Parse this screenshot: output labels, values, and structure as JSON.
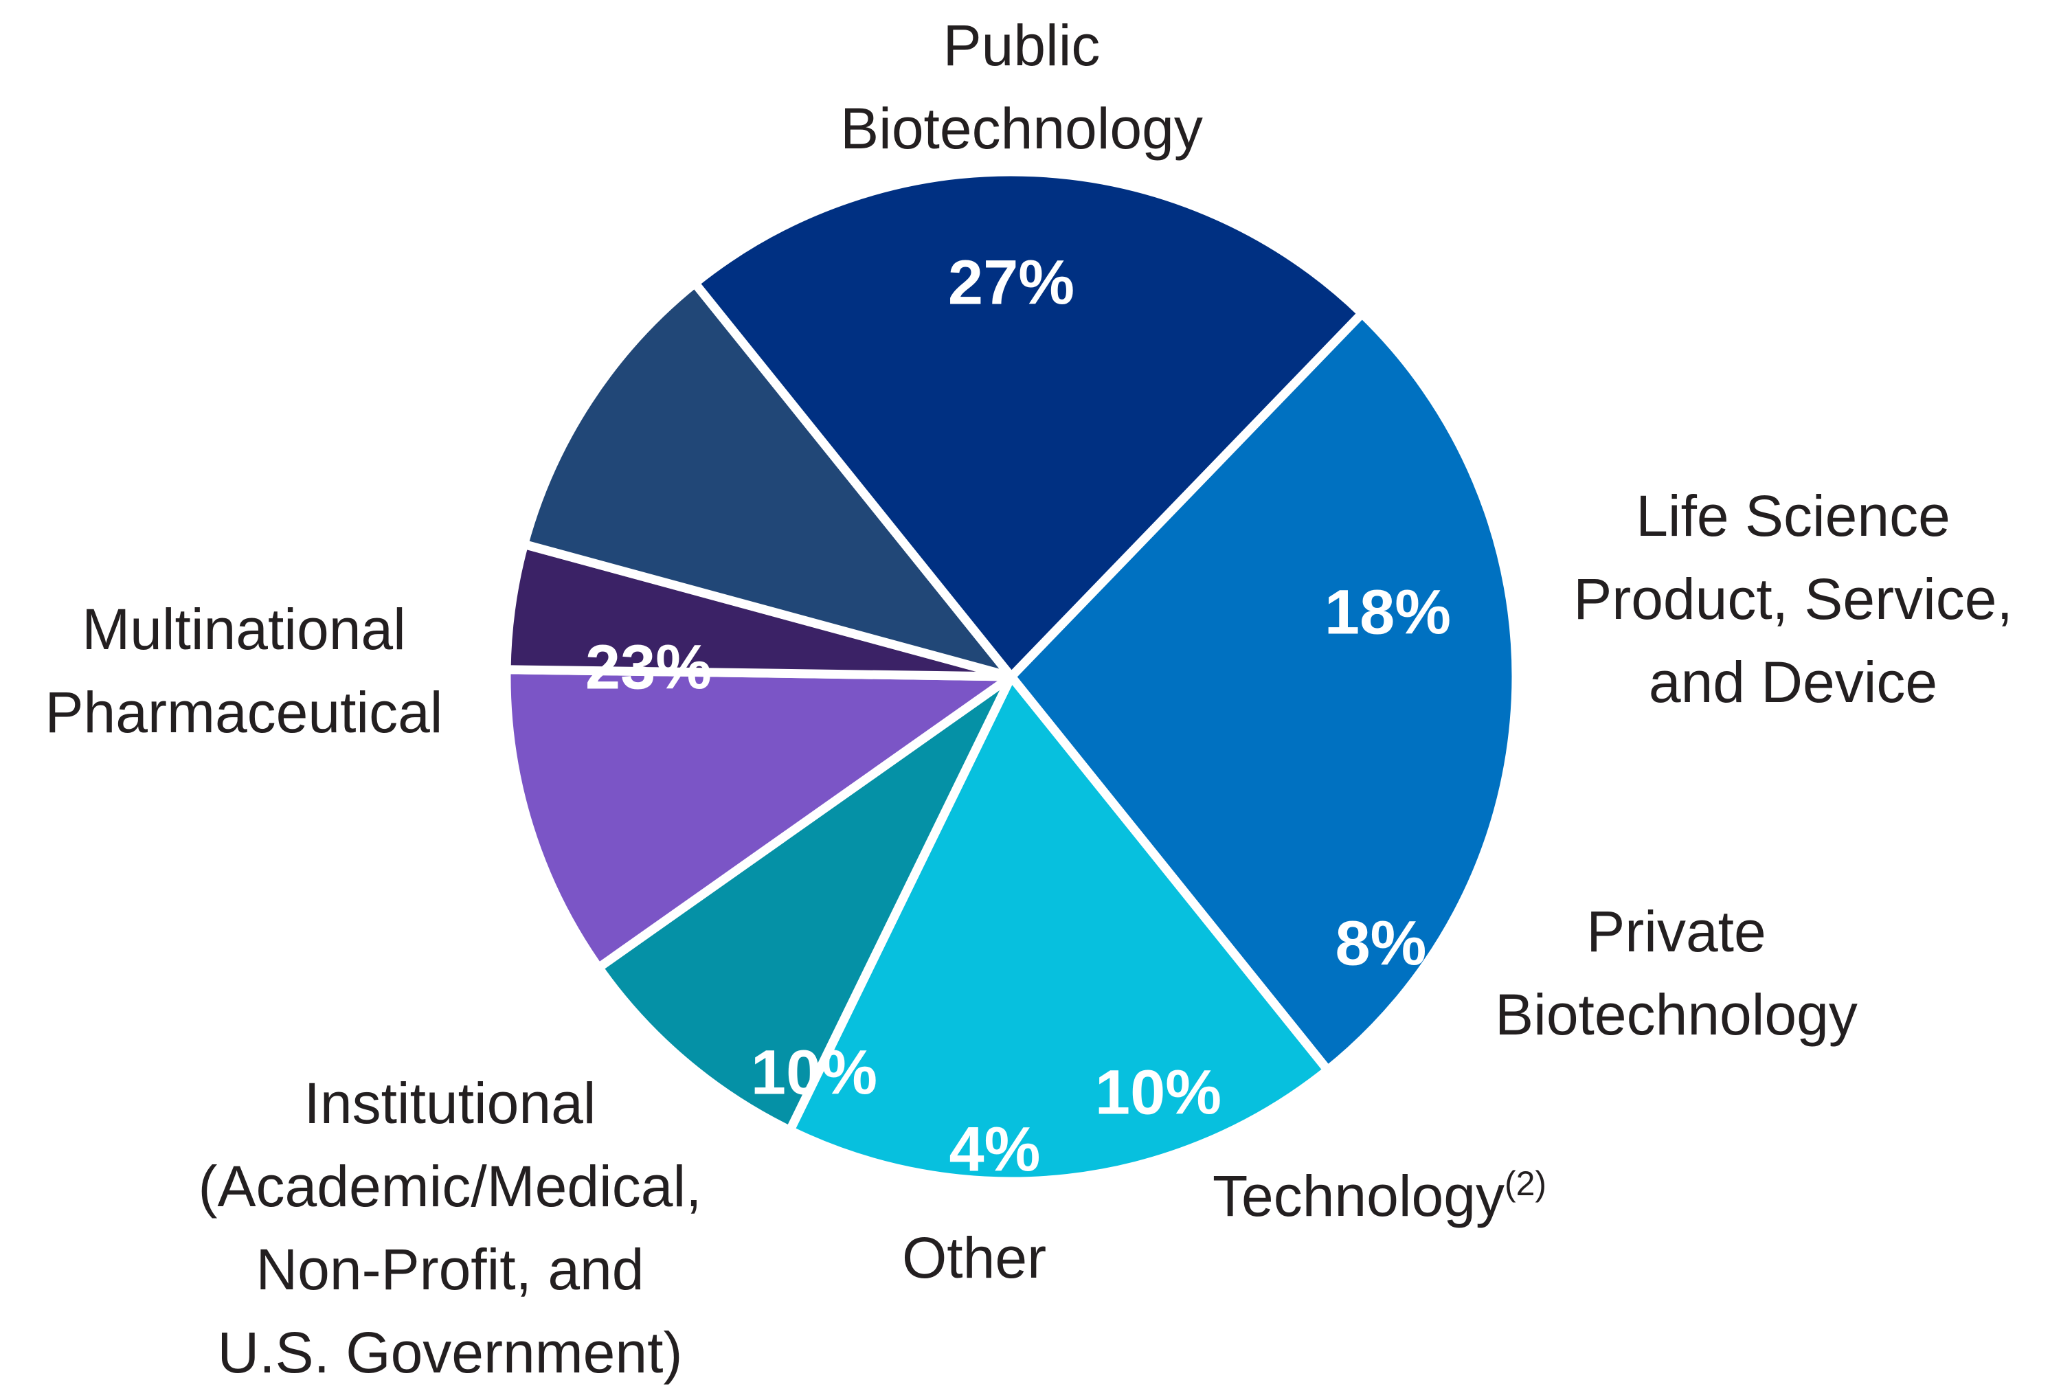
{
  "chart_data": {
    "type": "pie",
    "title": "",
    "slices": [
      {
        "name": "Public Biotechnology",
        "label_lines": [
          "Public",
          "Biotechnology"
        ],
        "value": 27,
        "value_label": "27%",
        "color": "#0071c1"
      },
      {
        "name": "Life Science Product, Service, and Device",
        "label_lines": [
          "Life Science",
          "Product, Service,",
          "and Device"
        ],
        "value": 18,
        "value_label": "18%",
        "color": "#07c0de"
      },
      {
        "name": "Private Biotechnology",
        "label_lines": [
          "Private",
          "Biotechnology"
        ],
        "value": 8,
        "value_label": "8%",
        "color": "#0591a6"
      },
      {
        "name": "Technology(2)",
        "label_lines": [
          "Technology"
        ],
        "label_sup": "(2)",
        "value": 10,
        "value_label": "10%",
        "color": "#7b55c6"
      },
      {
        "name": "Other",
        "label_lines": [
          "Other"
        ],
        "value": 4,
        "value_label": "4%",
        "color": "#3b2266"
      },
      {
        "name": "Institutional (Academic/Medical, Non-Profit, and U.S. Government)",
        "label_lines": [
          "Institutional",
          "(Academic/Medical,",
          "Non-Profit, and",
          "U.S. Government)"
        ],
        "value": 10,
        "value_label": "10%",
        "color": "#214777"
      },
      {
        "name": "Multinational Pharmaceutical",
        "label_lines": [
          "Multinational",
          "Pharmaceutical"
        ],
        "value": 23,
        "value_label": "23%",
        "color": "#003082"
      }
    ],
    "start_angle_deg": 44,
    "direction": "clockwise",
    "legend": "none",
    "separator_color": "#ffffff"
  }
}
